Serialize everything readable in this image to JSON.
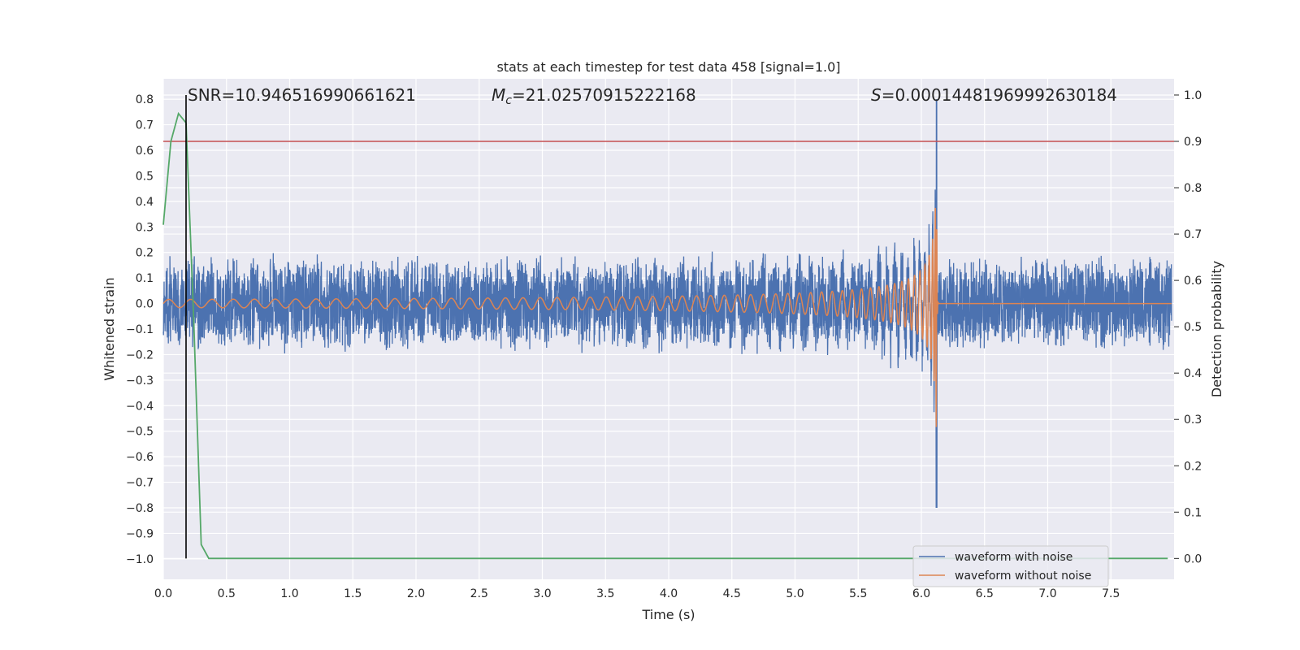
{
  "chart_data": {
    "type": "line",
    "title": "stats at each timestep for test data 458 [signal=1.0]",
    "xlabel": "Time (s)",
    "ylabel": "Whitened strain",
    "y2label": "Detection probability",
    "xlim": [
      0.0,
      8.0
    ],
    "ylim": [
      -1.08,
      0.88
    ],
    "y2lim": [
      -0.045,
      1.035
    ],
    "xticks": [
      "0.0",
      "0.5",
      "1.0",
      "1.5",
      "2.0",
      "2.5",
      "3.0",
      "3.5",
      "4.0",
      "4.5",
      "5.0",
      "5.5",
      "6.0",
      "6.5",
      "7.0",
      "7.5"
    ],
    "yticks": [
      "0.8",
      "0.7",
      "0.6",
      "0.5",
      "0.4",
      "0.3",
      "0.2",
      "0.1",
      "0.0",
      "−0.1",
      "−0.2",
      "−0.3",
      "−0.4",
      "−0.5",
      "−0.6",
      "−0.7",
      "−0.8",
      "−0.9",
      "−1.0"
    ],
    "y2ticks": [
      "1.0",
      "0.9",
      "0.8",
      "0.7",
      "0.6",
      "0.5",
      "0.4",
      "0.3",
      "0.2",
      "0.1",
      "0.0"
    ],
    "grid": true,
    "legend_placement": "lower-right",
    "annotations": {
      "snr": "SNR=10.946516990661621",
      "mc_symbol": "M",
      "mc_sub": "c",
      "mc_value": "=21.02570915222168",
      "s_symbol": "S",
      "s_value": "=0.00014481969992630184"
    },
    "series": [
      {
        "name": "waveform with noise",
        "color": "#4c72b0",
        "noise_amplitude": 0.18,
        "chirp_peak_time": 6.12,
        "chirp_peak_amplitude": 0.8
      },
      {
        "name": "waveform without noise",
        "color": "#dd8452",
        "start_amplitude": 0.015,
        "merger_time": 6.12,
        "merger_amplitude": 0.75
      },
      {
        "name": "",
        "color": "#55a868",
        "axis": "right",
        "x": [
          0.0,
          0.06,
          0.12,
          0.18,
          0.24,
          0.3,
          0.36,
          0.42,
          1.0,
          2.0,
          3.0,
          4.0,
          5.0,
          6.0,
          7.0,
          7.95
        ],
        "y": [
          0.72,
          0.9,
          0.96,
          0.94,
          0.52,
          0.03,
          0.0,
          0.0,
          0.0,
          0.0,
          0.0,
          0.0,
          0.0,
          0.0,
          0.0,
          0.0
        ]
      }
    ],
    "threshold_line": {
      "axis": "right",
      "value": 0.9,
      "color": "#c44e52"
    },
    "marker_line": {
      "x": 0.18,
      "color": "#000000"
    },
    "plot_background": "#eaeaf2",
    "grid_color": "#ffffff"
  }
}
